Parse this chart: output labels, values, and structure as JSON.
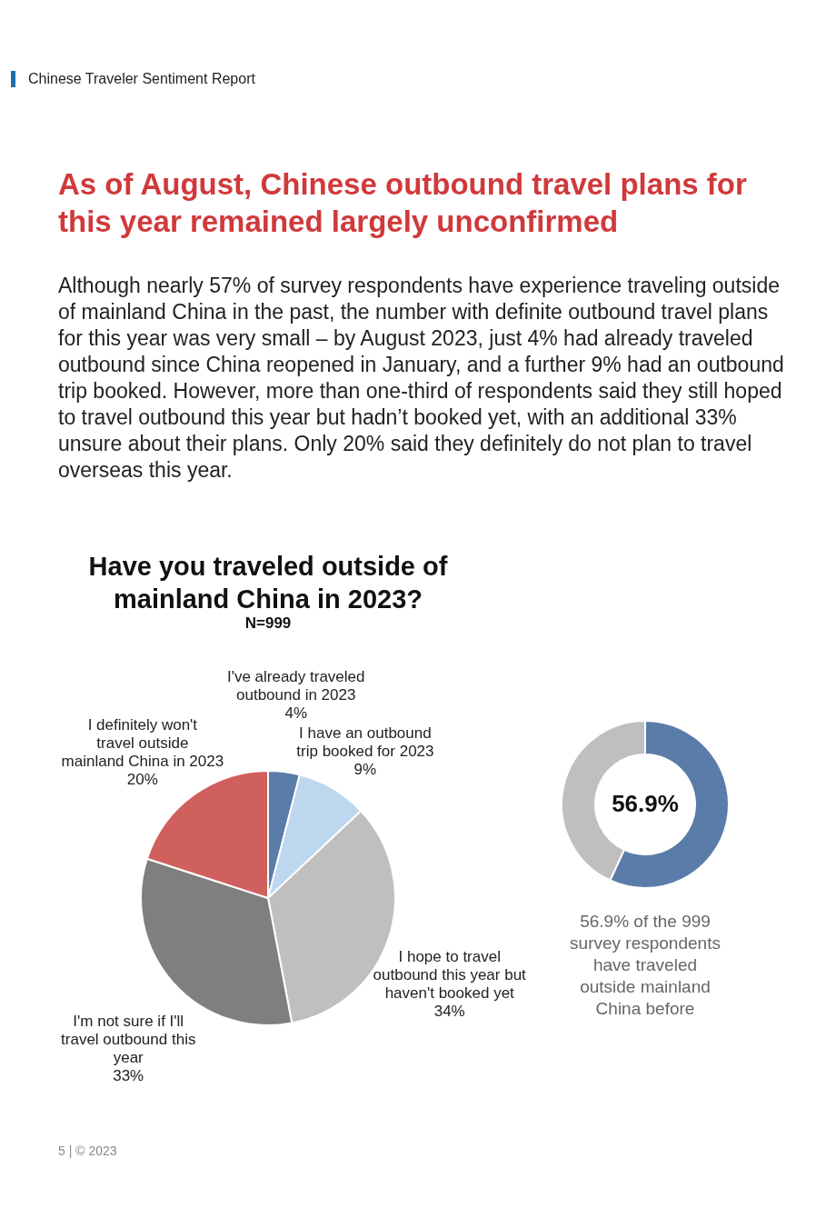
{
  "chart_data": [
    {
      "type": "other",
      "subtitle": "Chinese Traveler Sentiment Report",
      "title": "As of August, Chinese outbound travel plans for this year remained largely unconfirmed",
      "annotations": [
        "Although nearly 57% of survey respondents have experience traveling outside of mainland China in the past, the number with definite outbound travel plans for this year was very small – by August 2023, just 4% had already traveled outbound since China reopened in January, and a further 9% had an outbound trip booked. However, more than one-third of respondents said they still hoped to travel outbound this year but hadn’t booked yet, with an additional 33% unsure about their plans. Only 20% said they definitely do not plan to travel overseas this year.",
        "5 | © 2023"
      ]
    },
    {
      "type": "pie",
      "title": "Have you traveled outside of mainland China in 2023?",
      "subtitle": "N=999",
      "categories": [
        "I've already traveled outbound in 2023",
        "I have an outbound trip booked for 2023",
        "I hope to travel outbound this year but haven't booked yet",
        "I'm not sure if I'll travel outbound this year",
        "I definitely won't travel outside mainland China in 2023"
      ],
      "values": [
        4,
        9,
        34,
        33,
        20
      ],
      "value_labels": [
        "4%",
        "9%",
        "34%",
        "33%",
        "20%"
      ],
      "colors": [
        "#5a7ca8",
        "#bdd7ee",
        "#bfbfbf",
        "#7f7f7f",
        "#d0605e"
      ]
    },
    {
      "type": "donut",
      "categories": [
        null,
        null
      ],
      "values": [
        56.9,
        43.1
      ],
      "value_labels": [
        "56.9%",
        null
      ],
      "colors": [
        "#5a7ca8",
        "#bfbfbf"
      ],
      "annotations": [
        "56.9% of the 999 survey respondents have traveled outside mainland China before"
      ]
    }
  ]
}
